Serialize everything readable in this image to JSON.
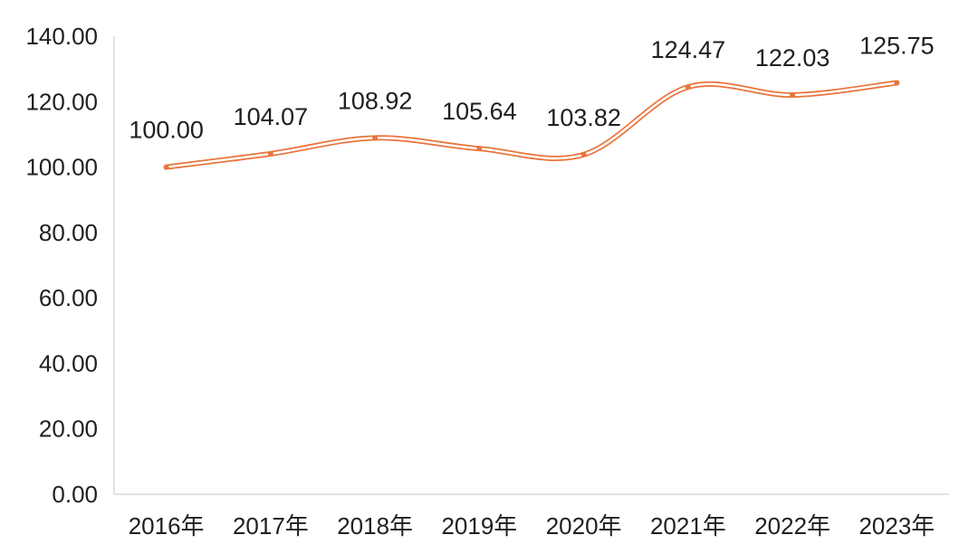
{
  "chart_data": {
    "type": "line",
    "categories": [
      "2016年",
      "2017年",
      "2018年",
      "2019年",
      "2020年",
      "2021年",
      "2022年",
      "2023年"
    ],
    "series": [
      {
        "values": [
          100.0,
          104.07,
          108.92,
          105.64,
          103.82,
          124.47,
          122.03,
          125.75
        ],
        "data_labels": [
          "100.00",
          "104.07",
          "108.92",
          "105.64",
          "103.82",
          "124.47",
          "122.03",
          "125.75"
        ],
        "color": "#E8743B",
        "smooth": true,
        "markers": "small-dots"
      }
    ],
    "y_ticks": [
      "0.00",
      "20.00",
      "40.00",
      "60.00",
      "80.00",
      "100.00",
      "120.00",
      "140.00"
    ],
    "ylim": [
      0,
      140
    ],
    "title": "",
    "xlabel": "",
    "ylabel": "",
    "grid": false,
    "legend": "none"
  }
}
